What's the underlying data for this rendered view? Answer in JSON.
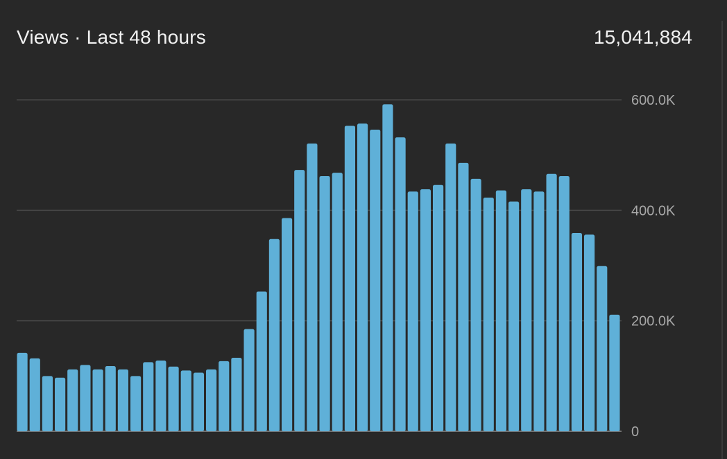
{
  "header": {
    "title": "Views · Last 48 hours",
    "total": "15,041,884"
  },
  "colors": {
    "background": "#282828",
    "bar": "#5fb0d8",
    "grid": "#474747",
    "text": "#f1f1f1",
    "tick_text": "#a8a8a8"
  },
  "chart_data": {
    "type": "bar",
    "title": "Views · Last 48 hours",
    "xlabel": "",
    "ylabel": "",
    "ylim": [
      0,
      600000
    ],
    "grid": true,
    "y_axis_position": "right",
    "y_ticks": [
      {
        "value": 0,
        "label": "0"
      },
      {
        "value": 200000,
        "label": "200.0K"
      },
      {
        "value": 400000,
        "label": "400.0K"
      },
      {
        "value": 600000,
        "label": "600.0K"
      }
    ],
    "values": [
      142000,
      132000,
      100000,
      97000,
      112000,
      120000,
      112000,
      118000,
      112000,
      100000,
      125000,
      128000,
      117000,
      110000,
      106000,
      112000,
      127000,
      133000,
      185000,
      253000,
      348000,
      386000,
      473000,
      521000,
      462000,
      468000,
      553000,
      557000,
      546000,
      592000,
      532000,
      434000,
      438000,
      446000,
      521000,
      486000,
      457000,
      423000,
      436000,
      416000,
      438000,
      434000,
      466000,
      462000,
      359000,
      356000,
      299000,
      211000
    ]
  }
}
